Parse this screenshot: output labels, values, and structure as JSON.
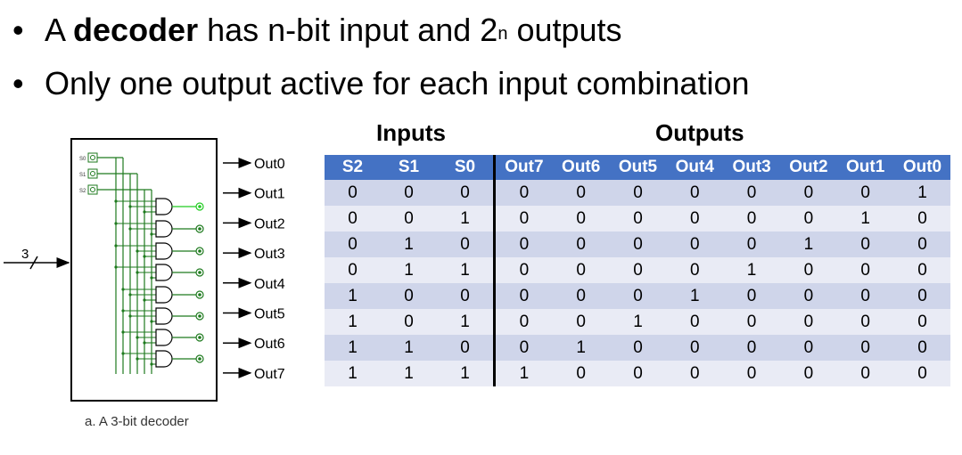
{
  "bullets": [
    {
      "pre": "A ",
      "bold": "decoder",
      "mid": " has n-bit input and 2",
      "sup": "n",
      "post": " outputs"
    },
    {
      "pre": "Only one output active for each input combination",
      "bold": "",
      "mid": "",
      "sup": "",
      "post": ""
    }
  ],
  "diagram": {
    "caption": "a. A 3-bit decoder",
    "input_label": "3",
    "select_labels": [
      "S0",
      "S1",
      "S2"
    ],
    "output_labels": [
      "Out0",
      "Out1",
      "Out2",
      "Out3",
      "Out4",
      "Out5",
      "Out6",
      "Out7"
    ],
    "wire_color": "#1e7a1e",
    "active_wire_color": "#22cc22"
  },
  "table": {
    "inputs_label": "Inputs",
    "outputs_label": "Outputs",
    "headers": [
      "S2",
      "S1",
      "S0",
      "Out7",
      "Out6",
      "Out5",
      "Out4",
      "Out3",
      "Out2",
      "Out1",
      "Out0"
    ],
    "rows": [
      [
        "0",
        "0",
        "0",
        "0",
        "0",
        "0",
        "0",
        "0",
        "0",
        "0",
        "1"
      ],
      [
        "0",
        "0",
        "1",
        "0",
        "0",
        "0",
        "0",
        "0",
        "0",
        "1",
        "0"
      ],
      [
        "0",
        "1",
        "0",
        "0",
        "0",
        "0",
        "0",
        "0",
        "1",
        "0",
        "0"
      ],
      [
        "0",
        "1",
        "1",
        "0",
        "0",
        "0",
        "0",
        "1",
        "0",
        "0",
        "0"
      ],
      [
        "1",
        "0",
        "0",
        "0",
        "0",
        "0",
        "1",
        "0",
        "0",
        "0",
        "0"
      ],
      [
        "1",
        "0",
        "1",
        "0",
        "0",
        "1",
        "0",
        "0",
        "0",
        "0",
        "0"
      ],
      [
        "1",
        "1",
        "0",
        "0",
        "1",
        "0",
        "0",
        "0",
        "0",
        "0",
        "0"
      ],
      [
        "1",
        "1",
        "1",
        "1",
        "0",
        "0",
        "0",
        "0",
        "0",
        "0",
        "0"
      ]
    ],
    "header_color": "#4472c4",
    "row_colors": [
      "#cfd5ea",
      "#e9ebf5"
    ]
  }
}
